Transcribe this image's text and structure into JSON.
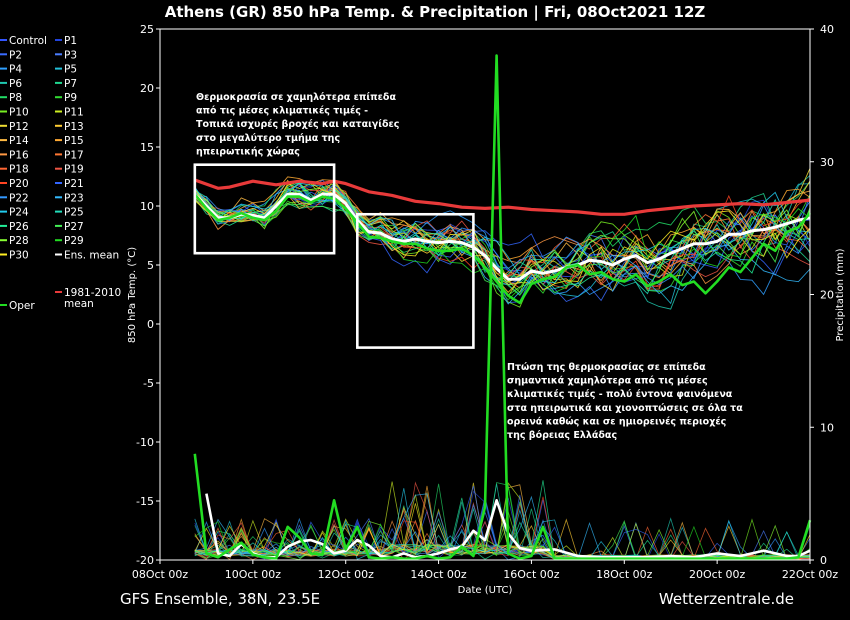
{
  "chart_data": {
    "type": "line",
    "title": "Athens  (GR)  850 hPa Temp. & Precipitation | Fri, 08Oct2021 12Z",
    "ylabel_left": "850 hPa Temp. (°C)",
    "ylabel_right": "Precipitation (mm)",
    "xlabel": "Date (UTC)",
    "x_ticks": [
      "08Oct 00z",
      "10Oct 00z",
      "12Oct 00z",
      "14Oct 00z",
      "16Oct 00z",
      "18Oct 00z",
      "20Oct 00z",
      "22Oct 00z"
    ],
    "x_range_hours": [
      0,
      336
    ],
    "y_left_ticks": [
      25,
      20,
      15,
      10,
      5,
      0,
      -5,
      -10,
      -15,
      -20
    ],
    "ylim_left": [
      -20,
      25
    ],
    "y_right_ticks": [
      40,
      30,
      20,
      10,
      0
    ],
    "ylim_right": [
      0,
      40
    ],
    "grid": false,
    "footer_left": "GFS Ensemble, 38N, 23.5E",
    "footer_right": "Wetterzentrale.de",
    "legend": [
      {
        "label": "Control",
        "color": "#3355ff"
      },
      {
        "label": "P1",
        "color": "#2244dd"
      },
      {
        "label": "P2",
        "color": "#3a6bff"
      },
      {
        "label": "P3",
        "color": "#4a7dff"
      },
      {
        "label": "P4",
        "color": "#2f9fff"
      },
      {
        "label": "P5",
        "color": "#22c0d8"
      },
      {
        "label": "P6",
        "color": "#20c9b0"
      },
      {
        "label": "P7",
        "color": "#20d890"
      },
      {
        "label": "P8",
        "color": "#22dd66"
      },
      {
        "label": "P9",
        "color": "#33dd33"
      },
      {
        "label": "P10",
        "color": "#77ee22"
      },
      {
        "label": "P11",
        "color": "#ccee22"
      },
      {
        "label": "P12",
        "color": "#eedd33"
      },
      {
        "label": "P13",
        "color": "#ffcc33"
      },
      {
        "label": "P14",
        "color": "#ffbb44"
      },
      {
        "label": "P15",
        "color": "#ffaa33"
      },
      {
        "label": "P16",
        "color": "#ff9944"
      },
      {
        "label": "P17",
        "color": "#ff7733"
      },
      {
        "label": "P18",
        "color": "#ff6633"
      },
      {
        "label": "P19",
        "color": "#ee5544"
      },
      {
        "label": "P20",
        "color": "#ff4422"
      },
      {
        "label": "P21",
        "color": "#3366ff"
      },
      {
        "label": "P22",
        "color": "#3399ff"
      },
      {
        "label": "P23",
        "color": "#33bbff"
      },
      {
        "label": "P24",
        "color": "#22ccee"
      },
      {
        "label": "P25",
        "color": "#22ddbb"
      },
      {
        "label": "P26",
        "color": "#22ee99"
      },
      {
        "label": "P27",
        "color": "#44ee55"
      },
      {
        "label": "P28",
        "color": "#88ff33"
      },
      {
        "label": "P29",
        "color": "#22dd22"
      },
      {
        "label": "P30",
        "color": "#ffee22"
      },
      {
        "label": "Ens. mean",
        "color": "#ffffff"
      },
      {
        "label": "Oper",
        "color": "#22dd22"
      },
      {
        "label": "1981-2010 mean",
        "color": "#e83a3a"
      }
    ],
    "series": [
      {
        "name": "Ens. mean",
        "axis": "left",
        "x": [
          18,
          24,
          30,
          36,
          42,
          48,
          54,
          60,
          66,
          72,
          78,
          84,
          90,
          96,
          102,
          108,
          114,
          120,
          126,
          132,
          138,
          144,
          150,
          156,
          162,
          168,
          174,
          180,
          186,
          192,
          198,
          204,
          210,
          216,
          222,
          228,
          234,
          240,
          246,
          252,
          258,
          264,
          270,
          276,
          282,
          288,
          294,
          300,
          306,
          312,
          318,
          324,
          330,
          336
        ],
        "y": [
          11,
          10,
          9,
          9,
          9.3,
          9.2,
          9,
          10,
          11,
          11,
          10.5,
          11,
          11,
          10.2,
          8.8,
          7.8,
          7.7,
          7.2,
          7,
          7.2,
          7,
          6.9,
          7,
          6.9,
          6.5,
          5.8,
          4.7,
          3.8,
          3.8,
          4.5,
          4.3,
          4.5,
          4.8,
          5,
          5.4,
          5.3,
          5,
          5.5,
          5.8,
          5.2,
          5.5,
          6,
          6.4,
          6.8,
          6.8,
          7,
          7.6,
          7.6,
          7.9,
          8,
          8.2,
          8.5,
          8.8,
          9
        ]
      },
      {
        "name": "1981-2010 mean",
        "axis": "left",
        "x": [
          18,
          30,
          36,
          48,
          60,
          72,
          84,
          90,
          96,
          108,
          120,
          132,
          144,
          156,
          168,
          180,
          192,
          204,
          216,
          228,
          240,
          252,
          264,
          276,
          288,
          300,
          312,
          324,
          336
        ],
        "y": [
          12.2,
          11.5,
          11.6,
          12.1,
          11.8,
          12.1,
          11.9,
          12.1,
          11.9,
          11.2,
          10.9,
          10.4,
          10.2,
          9.9,
          9.8,
          9.9,
          9.7,
          9.6,
          9.5,
          9.3,
          9.3,
          9.6,
          9.8,
          10,
          10.1,
          10.2,
          10.1,
          10.3,
          10.5
        ]
      },
      {
        "name": "Oper",
        "axis": "left",
        "x": [
          18,
          24,
          30,
          36,
          42,
          48,
          54,
          60,
          66,
          72,
          78,
          84,
          90,
          96,
          102,
          108,
          114,
          120,
          126,
          132,
          138,
          144,
          150,
          156,
          162,
          168,
          174,
          180,
          186,
          192,
          198,
          204,
          210,
          216,
          222,
          228,
          234,
          240,
          246,
          252,
          258,
          264,
          270,
          276,
          282,
          288,
          294,
          300,
          306,
          312,
          318,
          324,
          330,
          336
        ],
        "y": [
          11,
          9.8,
          8.8,
          9,
          9.4,
          9,
          8.8,
          9.6,
          10.8,
          10.8,
          10.3,
          10.8,
          10.6,
          9.8,
          8.6,
          7.4,
          7.3,
          7,
          6.8,
          6.8,
          6.4,
          6.2,
          6.2,
          6.4,
          5.8,
          4.8,
          3.6,
          2.4,
          1.8,
          3.4,
          3.8,
          4,
          4.8,
          5,
          4.2,
          4.4,
          3.8,
          3.6,
          4.2,
          3.2,
          3.6,
          4.2,
          3.3,
          3.6,
          2.6,
          3.6,
          4.8,
          4.4,
          5.6,
          6.8,
          6.2,
          7.8,
          8.2,
          9.4
        ]
      },
      {
        "name": "Ens. mean precipitation",
        "axis": "right",
        "x": [
          24,
          30,
          36,
          42,
          48,
          54,
          60,
          66,
          72,
          78,
          84,
          90,
          96,
          102,
          108,
          114,
          120,
          126,
          132,
          138,
          144,
          150,
          156,
          162,
          168,
          174,
          180,
          186,
          192,
          204,
          216,
          228,
          240,
          252,
          264,
          276,
          288,
          300,
          312,
          324,
          330,
          336
        ],
        "y": [
          5,
          0.5,
          0.3,
          1.2,
          0.5,
          0.2,
          0.2,
          1,
          1.4,
          1.5,
          1.2,
          0.5,
          0.7,
          1.5,
          1.1,
          0.3,
          0.2,
          0.5,
          0.2,
          0.3,
          0.5,
          0.8,
          1,
          2.2,
          1.5,
          4.5,
          2,
          0.9,
          0.7,
          0.8,
          0.3,
          0.2,
          0.2,
          0.2,
          0.3,
          0.2,
          0.5,
          0.3,
          0.7,
          0.3,
          0.3,
          0.7
        ]
      },
      {
        "name": "Oper precipitation",
        "axis": "right",
        "x": [
          18,
          24,
          30,
          36,
          42,
          48,
          54,
          60,
          66,
          72,
          78,
          84,
          90,
          96,
          102,
          108,
          114,
          120,
          126,
          132,
          138,
          144,
          150,
          156,
          162,
          168,
          174,
          180,
          186,
          192,
          198,
          204,
          216,
          228,
          240,
          252,
          264,
          276,
          288,
          300,
          312,
          324,
          330,
          336
        ],
        "y": [
          8,
          0.5,
          0.2,
          0.8,
          1.3,
          0.4,
          0.2,
          0.1,
          2.5,
          1.7,
          0.5,
          0.4,
          4.5,
          0.8,
          2.5,
          0.2,
          0.1,
          0.2,
          0.1,
          0.1,
          0.3,
          0.1,
          0.2,
          1,
          0.3,
          4,
          38,
          0.5,
          0.1,
          0.3,
          2.5,
          0.1,
          0.1,
          0.1,
          0.1,
          0.1,
          0.1,
          0.1,
          0.1,
          0.1,
          0.1,
          0.1,
          0.2,
          3
        ]
      }
    ],
    "annotations": [
      {
        "lines": [
          "Θερμοκρασία σε χαμηλότερα επίπεδα",
          "από τις μέσες κλιματικές τιμές -",
          "Τοπικά ισχυρές βροχές και καταιγίδες",
          "στο μεγαλύτερο τμήμα της",
          "ηπειρωτικής χώρας"
        ]
      },
      {
        "lines": [
          "Πτώση της θερμοκρασίας σε επίπεδα",
          "σημαντικά χαμηλότερα από τις μέσες",
          "κλιματικές τιμές - πολύ έντονα φαινόμενα",
          "στα ηπειρωτικά και χιονοπτώσεις σε όλα τα",
          "ορεινά καθώς και σε ημιορεινές περιοχές",
          "της βόρειας Ελλάδας"
        ]
      }
    ],
    "highlight_boxes": [
      {
        "x": [
          18,
          90
        ],
        "y": [
          6,
          13.5
        ]
      },
      {
        "x": [
          102,
          162
        ],
        "y": [
          -2,
          9.3
        ]
      }
    ]
  }
}
